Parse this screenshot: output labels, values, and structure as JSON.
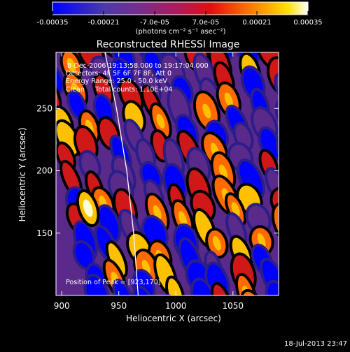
{
  "colorbar": {
    "tick_labels": [
      "-0.00035",
      "-0.00021",
      "-7.0e-05",
      "7.0e-05",
      "0.00021",
      "0.00035"
    ],
    "tick_values": [
      -0.00035,
      -0.00021,
      -7e-05,
      7e-05,
      0.00021,
      0.00035
    ],
    "range": [
      -0.00035,
      0.00035
    ],
    "units": "(photons cm⁻² s⁻¹ asec⁻²)"
  },
  "info": {
    "line1": "8-Dec-2006 19:13:58.000 to 19:17:04.000",
    "line2": "Detectors: 4F 5F 6F 7F 8F, Att 0",
    "line3": "Energy Range: 25.0 - 50.0 keV",
    "line4": "Clean     Total counts: 1.10E+04"
  },
  "peak_label": "Position of Peak = [923,170]",
  "timestamp": "18-Jul-2013 23:47",
  "chart_data": {
    "type": "heatmap",
    "title": "Reconstructed RHESSI Image",
    "xlabel": "Heliocentric X (arcsec)",
    "ylabel": "Heliocentric Y (arcsec)",
    "xlim": [
      895,
      1090
    ],
    "ylim": [
      100,
      295
    ],
    "x_ticks": [
      900,
      950,
      1000,
      1050
    ],
    "y_ticks": [
      150,
      200,
      250
    ],
    "x_tick_labels": [
      "900",
      "950",
      "1000",
      "1050"
    ],
    "y_tick_labels": [
      "150",
      "200",
      "250"
    ],
    "colormap": [
      "#0000ff",
      "#2b1d8a",
      "#5a2a8a",
      "#a0206a",
      "#d01818",
      "#ff6a00",
      "#ffc000",
      "#ffffd0"
    ],
    "peak": [
      923,
      170
    ],
    "limb_curve": [
      [
        938,
        295
      ],
      [
        948,
        250
      ],
      [
        957,
        200
      ],
      [
        963,
        150
      ],
      [
        967,
        100
      ]
    ],
    "grid": false
  }
}
